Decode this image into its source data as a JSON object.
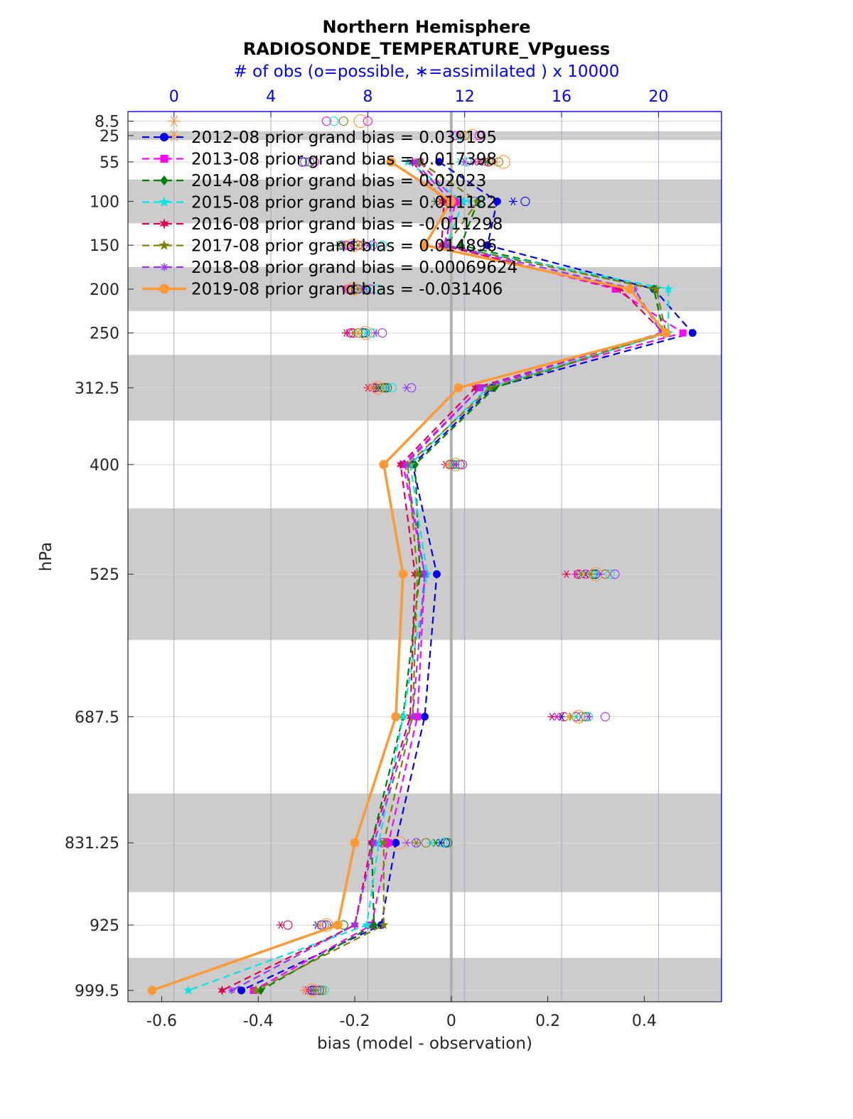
{
  "title": "Northern Hemisphere",
  "subtitle": "RADIOSONDE_TEMPERATURE_VPguess",
  "top_axis": {
    "label": "# of obs (o=possible, ∗=assimilated ) x 10000",
    "ticks": [
      0,
      4,
      8,
      12,
      16,
      20
    ],
    "range": [
      -1.9,
      22.6
    ],
    "color": "#0000ff"
  },
  "chart_data": {
    "type": "line",
    "title": "Northern Hemisphere",
    "subtitle": "RADIOSONDE_TEMPERATURE_VPguess",
    "xlabel": "bias (model - observation)",
    "ylabel": "hPa",
    "xlim": [
      -0.67,
      0.56
    ],
    "x_ticks": [
      -0.6,
      -0.4,
      -0.2,
      0,
      0.2,
      0.4
    ],
    "x_tick_labels": [
      "-0.6",
      "-0.4",
      "-0.2",
      "0",
      "0.2",
      "0.4"
    ],
    "levels": [
      8.5,
      25,
      55,
      100,
      150,
      200,
      250,
      312.5,
      400,
      525,
      687.5,
      831.25,
      925,
      999.5
    ],
    "level_labels": [
      "8.5",
      "25",
      "55",
      "100",
      "150",
      "200",
      "250",
      "312.5",
      "400",
      "525",
      "687.5",
      "831.25",
      "925",
      "999.5"
    ],
    "grid": "vertical lines at top-axis ticks, horizontal lines at levels",
    "legend_position": "top-left",
    "shaded_layers_hPa": [
      [
        20,
        30
      ],
      [
        75,
        125
      ],
      [
        175,
        225
      ],
      [
        275,
        350
      ],
      [
        450,
        600
      ],
      [
        775,
        887.5
      ],
      [
        962.5,
        1012.5
      ]
    ],
    "series": [
      {
        "name": "2012-08 prior grand bias = 0.039195",
        "color": "#0000ee",
        "marker": "circle",
        "dashed": true,
        "levels": [
          55,
          100,
          150,
          200,
          250,
          312.5,
          400,
          525,
          687.5,
          831.25,
          925,
          999.5
        ],
        "values": [
          -0.025,
          0.095,
          0.075,
          0.42,
          0.5,
          0.085,
          -0.08,
          -0.03,
          -0.055,
          -0.115,
          -0.145,
          -0.435
        ],
        "obs_possible": [
          5.3,
          14.5,
          7.4,
          7.6,
          7.8,
          8.7,
          11.8,
          17.4,
          16.6,
          11.2,
          6.1,
          5.7
        ],
        "obs_assimilated": [
          12.8,
          14.0,
          7.3,
          7.4,
          7.6,
          8.4,
          11.6,
          17.0,
          16.0,
          11.0,
          5.9,
          5.4
        ]
      },
      {
        "name": "2013-08 prior grand bias = 0.017398",
        "color": "#ff00ff",
        "marker": "square",
        "dashed": true,
        "levels": [
          55,
          100,
          150,
          200,
          250,
          312.5,
          400,
          525,
          687.5,
          831.25,
          925,
          999.5
        ],
        "values": [
          -0.065,
          0.01,
          -0.015,
          0.34,
          0.48,
          0.06,
          -0.1,
          -0.055,
          -0.07,
          -0.13,
          -0.165,
          -0.41
        ],
        "obs_possible": [
          5.8,
          11.6,
          7.1,
          7.2,
          7.4,
          8.6,
          11.9,
          17.0,
          16.6,
          8.6,
          6.3,
          6.0
        ],
        "obs_assimilated": [
          12.4,
          11.6,
          7.0,
          7.1,
          7.2,
          8.2,
          11.5,
          16.6,
          15.8,
          8.4,
          6.0,
          5.5
        ]
      },
      {
        "name": "2014-08 prior grand bias = 0.02023",
        "color": "#008000",
        "marker": "diamond",
        "dashed": true,
        "levels": [
          55,
          100,
          150,
          200,
          250,
          312.5,
          400,
          525,
          687.5,
          831.25,
          925,
          999.5
        ],
        "values": [
          -0.065,
          0.055,
          0.02,
          0.42,
          0.44,
          0.09,
          -0.075,
          -0.065,
          -0.1,
          -0.165,
          -0.16,
          -0.395
        ],
        "obs_possible": [
          5.6,
          11.3,
          6.9,
          7.5,
          7.9,
          8.8,
          11.5,
          17.3,
          17.0,
          11.3,
          7.0,
          6.0
        ],
        "obs_assimilated": [
          12.9,
          10.8,
          6.8,
          7.2,
          7.6,
          8.5,
          11.4,
          16.8,
          16.4,
          10.8,
          6.6,
          5.7
        ]
      },
      {
        "name": "2015-08 prior grand bias = 0.011182",
        "color": "#00e5e5",
        "marker": "star",
        "dashed": true,
        "levels": [
          55,
          100,
          150,
          200,
          250,
          312.5,
          400,
          525,
          687.5,
          831.25,
          925,
          999.5
        ],
        "values": [
          -0.09,
          0.025,
          -0.01,
          0.45,
          0.45,
          0.075,
          -0.085,
          -0.05,
          -0.1,
          -0.15,
          -0.175,
          -0.545
        ],
        "obs_possible": [
          12.1,
          12.6,
          8.6,
          8.4,
          8.2,
          9.0,
          11.6,
          18.0,
          17.1,
          11.1,
          6.2,
          6.2
        ],
        "obs_assimilated": [
          11.8,
          12.2,
          8.2,
          8.0,
          7.9,
          8.7,
          11.4,
          17.4,
          16.6,
          10.6,
          6.0,
          5.9
        ]
      },
      {
        "name": "2016-08 prior grand bias = -0.011298",
        "color": "#e00050",
        "marker": "hexagram",
        "dashed": true,
        "levels": [
          55,
          100,
          150,
          200,
          250,
          312.5,
          400,
          525,
          687.5,
          831.25,
          925,
          999.5
        ],
        "values": [
          -0.08,
          -0.015,
          -0.02,
          0.35,
          0.44,
          0.05,
          -0.105,
          -0.075,
          -0.085,
          -0.165,
          -0.2,
          -0.475
        ],
        "obs_possible": [
          13.0,
          11.3,
          7.6,
          7.4,
          7.3,
          8.3,
          11.4,
          16.7,
          16.1,
          8.8,
          4.7,
          5.8
        ],
        "obs_assimilated": [
          12.6,
          11.0,
          7.4,
          7.2,
          7.1,
          8.0,
          11.2,
          16.2,
          15.6,
          8.6,
          4.4,
          5.5
        ]
      },
      {
        "name": "2017-08 prior grand bias = 0.014896",
        "color": "#808000",
        "marker": "pentagram",
        "dashed": true,
        "levels": [
          55,
          100,
          150,
          200,
          250,
          312.5,
          400,
          525,
          687.5,
          831.25,
          925,
          999.5
        ],
        "values": [
          -0.065,
          0.055,
          -0.01,
          0.425,
          0.445,
          0.08,
          -0.09,
          -0.07,
          -0.08,
          -0.14,
          -0.14,
          -0.405
        ],
        "obs_possible": [
          13.4,
          11.7,
          7.8,
          7.9,
          7.6,
          8.6,
          11.8,
          17.8,
          16.8,
          10.4,
          6.2,
          6.1
        ],
        "obs_assimilated": [
          13.0,
          11.3,
          7.6,
          7.6,
          7.4,
          8.3,
          11.5,
          17.2,
          16.3,
          10.0,
          6.0,
          5.8
        ]
      },
      {
        "name": "2018-08 prior grand bias = 0.00069624",
        "color": "#9933ff",
        "marker": "asterisk",
        "dashed": true,
        "levels": [
          55,
          100,
          150,
          200,
          250,
          312.5,
          400,
          525,
          687.5,
          831.25,
          925,
          999.5
        ],
        "values": [
          -0.075,
          0.0,
          -0.01,
          0.38,
          0.435,
          0.06,
          -0.095,
          -0.055,
          -0.08,
          -0.16,
          -0.2,
          -0.455
        ],
        "obs_possible": [
          5.4,
          12.4,
          8.2,
          8.1,
          8.6,
          9.8,
          11.9,
          18.2,
          17.8,
          10.0,
          6.3,
          5.9
        ],
        "obs_assimilated": [
          12.0,
          11.9,
          8.0,
          7.8,
          8.3,
          9.6,
          11.6,
          17.6,
          17.1,
          9.6,
          6.0,
          5.6
        ]
      },
      {
        "name": "2019-08 prior grand bias = -0.031406",
        "color": "#ff9933",
        "marker": "circle",
        "dashed": false,
        "levels": [
          55,
          100,
          150,
          200,
          250,
          312.5,
          400,
          525,
          687.5,
          831.25,
          925,
          999.5
        ],
        "values": [
          -0.125,
          -0.0,
          -0.055,
          0.37,
          0.445,
          0.015,
          -0.14,
          -0.1,
          -0.115,
          -0.2,
          -0.235,
          -0.62
        ],
        "obs_possible": [
          13.6,
          11.4,
          7.4,
          7.4,
          7.9,
          8.4,
          11.6,
          17.4,
          16.7,
          9.3,
          6.3,
          5.7
        ],
        "obs_assimilated": [
          13.3,
          11.1,
          7.2,
          7.2,
          7.6,
          8.1,
          11.3,
          16.9,
          16.3,
          9.0,
          6.0,
          5.4
        ]
      }
    ],
    "top_level_obs": [
      {
        "level": 8.5,
        "possible": [
          6.3,
          6.6,
          7.0,
          7.7,
          8.0
        ],
        "assimilated_at_zero": true,
        "color": "#ff9933"
      },
      {
        "level": 25,
        "possible": [
          11.6,
          11.8,
          12.0,
          12.3,
          12.6
        ],
        "assimilated_at_zero": true,
        "color": "#ff9933"
      }
    ]
  }
}
